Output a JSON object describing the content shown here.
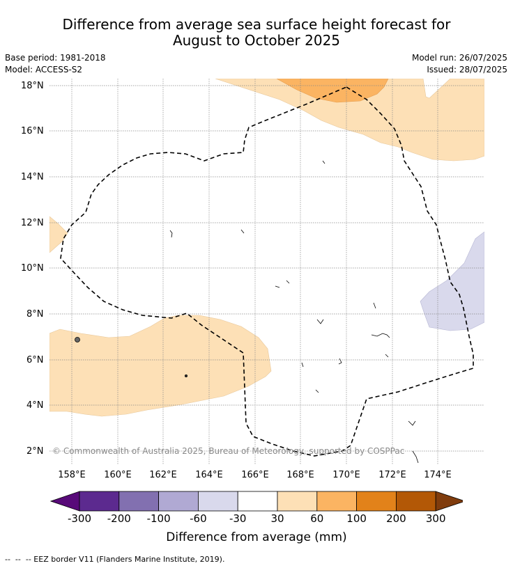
{
  "title_line1": "Difference from average sea surface height forecast for",
  "title_line2": "August to October 2025",
  "meta": {
    "base_period": "Base period: 1981-2018",
    "model": "Model: ACCESS-S2",
    "model_run": "Model run: 26/07/2025",
    "issued": "Issued: 28/07/2025"
  },
  "map": {
    "lat_labels": [
      "18°N",
      "16°N",
      "14°N",
      "12°N",
      "10°N",
      "8°N",
      "6°N",
      "4°N",
      "2°N"
    ],
    "lon_labels": [
      "158°E",
      "160°E",
      "162°E",
      "164°E",
      "166°E",
      "168°E",
      "170°E",
      "172°E",
      "174°E"
    ],
    "copyright": "© Commonwealth of Australia 2025, Bureau of Meteorology, supported by COSPPac",
    "colors": {
      "anomaly_30_60": "#fde0b6",
      "anomaly_60_100": "#fbb462",
      "anomaly_neg60_neg30": "#d9d9ec",
      "eez_border": "#000000",
      "grid": "#888888"
    }
  },
  "colorbar": {
    "title": "Difference from average (mm)",
    "ticks": [
      "-300",
      "-200",
      "-100",
      "-60",
      "-30",
      "30",
      "60",
      "100",
      "200",
      "300"
    ],
    "colors": [
      "#580a79",
      "#5c2a8f",
      "#8270b0",
      "#b0a9d3",
      "#d9d9ec",
      "#ffffff",
      "#fde0b6",
      "#fbb462",
      "#e2821a",
      "#b35806",
      "#803c0d"
    ]
  },
  "footer": "--  --  -- EEZ border V11 (Flanders Marine Institute, 2019)."
}
